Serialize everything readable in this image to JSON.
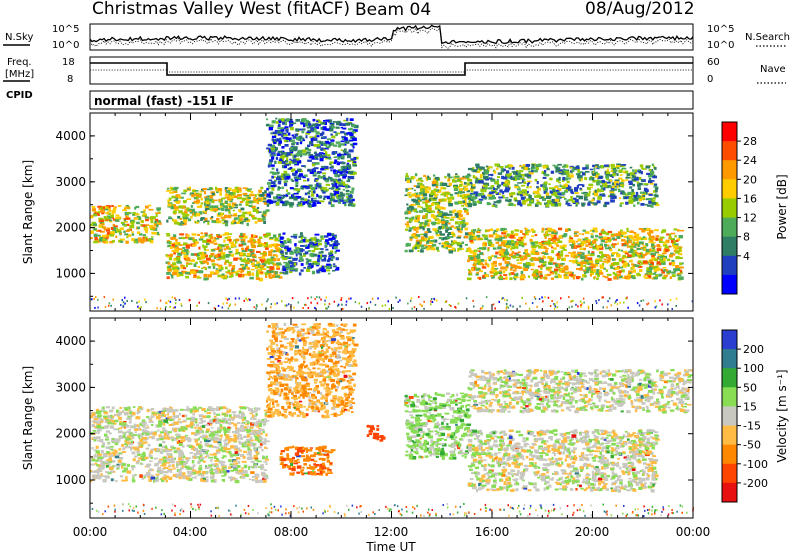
{
  "header": {
    "station": "Christmas Valley West (fitACF)",
    "beam": "Beam 04",
    "date": "08/Aug/2012"
  },
  "noise_panel": {
    "left_label": "N.Sky",
    "right_label": "N.Search",
    "left_ticks": [
      "10^5",
      "10^0"
    ],
    "right_ticks": [
      "10^5",
      "10^0"
    ]
  },
  "freq_panel": {
    "left_label_1": "Freq.",
    "left_label_2": "[MHz]",
    "right_label": "Nave",
    "left_ticks": [
      "18",
      "8"
    ],
    "right_ticks": [
      "60",
      "0"
    ],
    "cpid_label": "CPID",
    "mode_text": "normal (fast) -151 IF"
  },
  "time_axis": {
    "title": "Time UT",
    "ticks": [
      "00:00",
      "04:00",
      "08:00",
      "12:00",
      "16:00",
      "20:00",
      "00:00"
    ]
  },
  "range_axis": {
    "title": "Slant Range [km]",
    "ticks": [
      "1000",
      "2000",
      "3000",
      "4000"
    ]
  },
  "power_colorbar": {
    "title": "Power [dB]",
    "labels": [
      "28",
      "24",
      "20",
      "16",
      "12",
      "8",
      "4"
    ],
    "colors": [
      "#ff0000",
      "#ff4d00",
      "#ff9900",
      "#ffcc00",
      "#99cc00",
      "#4dab5a",
      "#2e7d64",
      "#1f3fbf",
      "#0000ff"
    ]
  },
  "velocity_colorbar": {
    "title": "Velocity [m s⁻¹]",
    "labels": [
      "200",
      "100",
      "50",
      "15",
      "-15",
      "-50",
      "-100",
      "-200"
    ],
    "colors": [
      "#2a3fd0",
      "#2f7d8f",
      "#33aa33",
      "#88dd55",
      "#c8c8c0",
      "#ffbb44",
      "#ff8800",
      "#ff4400",
      "#e81010"
    ]
  },
  "chart_data": {
    "type": "heatmap",
    "title": "Christmas Valley West (fitACF) Beam 04 08/Aug/2012",
    "xlabel": "Time UT",
    "ylabel": "Slant Range [km]",
    "x_range_hours": [
      0,
      24
    ],
    "y_range_km": [
      180,
      4500
    ],
    "panels": [
      {
        "name": "Power [dB]",
        "color_range": [
          0,
          32
        ],
        "regions": [
          {
            "name": "lower band",
            "t_start": 0.0,
            "t_end": 2.7,
            "range_start": 1700,
            "range_end": 2500,
            "peak_value": 28
          },
          {
            "name": "lower band",
            "t_start": 3.0,
            "t_end": 7.5,
            "range_start": 900,
            "range_end": 1900,
            "peak_value": 28
          },
          {
            "name": "upper band",
            "t_start": 3.0,
            "t_end": 7.0,
            "range_start": 2100,
            "range_end": 2900,
            "peak_value": 26
          },
          {
            "name": "rising band",
            "t_start": 7.0,
            "t_end": 10.5,
            "range_start": 2500,
            "range_end": 4400,
            "peak_value": 16
          },
          {
            "name": "patch",
            "t_start": 7.5,
            "t_end": 9.8,
            "range_start": 1000,
            "range_end": 1900,
            "peak_value": 16
          },
          {
            "name": "descending band",
            "t_start": 12.5,
            "t_end": 15.0,
            "range_start": 1500,
            "range_end": 3200,
            "peak_value": 24
          },
          {
            "name": "evening band",
            "t_start": 15.0,
            "t_end": 22.5,
            "range_start": 2500,
            "range_end": 3400,
            "peak_value": 20
          },
          {
            "name": "evening lower band",
            "t_start": 15.0,
            "t_end": 23.5,
            "range_start": 900,
            "range_end": 2000,
            "peak_value": 28
          }
        ]
      },
      {
        "name": "Velocity [m s-1]",
        "color_range": [
          -200,
          200
        ],
        "regions": [
          {
            "name": "ground scatter",
            "t_start": 0.0,
            "t_end": 7.0,
            "range_start": 1000,
            "range_end": 2600,
            "value": 0
          },
          {
            "name": "rising band",
            "t_start": 7.0,
            "t_end": 10.5,
            "range_start": 2400,
            "range_end": 4400,
            "value": -40
          },
          {
            "name": "patch",
            "t_start": 7.5,
            "t_end": 9.6,
            "range_start": 1150,
            "range_end": 1750,
            "value": -90
          },
          {
            "name": "small patch",
            "t_start": 11.0,
            "t_end": 11.6,
            "range_start": 1850,
            "range_end": 2200,
            "value": -160
          },
          {
            "name": "descending band",
            "t_start": 12.5,
            "t_end": 15.0,
            "range_start": 1500,
            "range_end": 2900,
            "value": 30
          },
          {
            "name": "evening band",
            "t_start": 15.0,
            "t_end": 23.8,
            "range_start": 2500,
            "range_end": 3400,
            "value": 0
          },
          {
            "name": "evening lower band",
            "t_start": 15.0,
            "t_end": 22.5,
            "range_start": 800,
            "range_end": 2100,
            "value": 0
          }
        ]
      }
    ]
  }
}
